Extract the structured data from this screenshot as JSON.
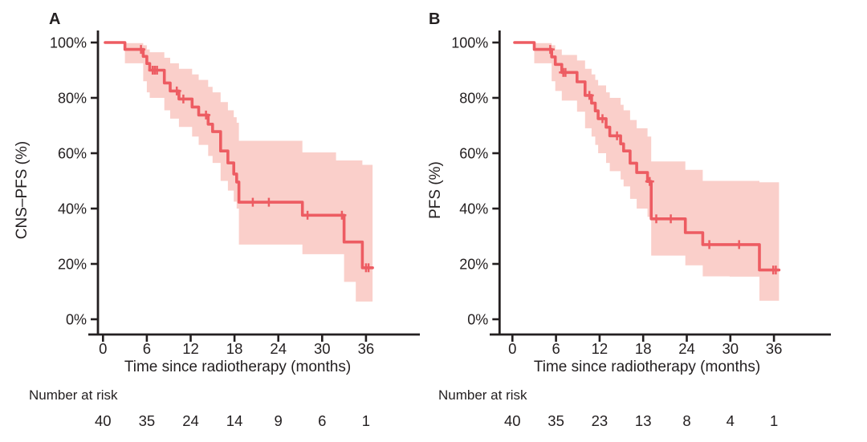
{
  "figure": {
    "background": "#ffffff",
    "colors": {
      "line": "#ED5C62",
      "band": "#FACFCA",
      "axis": "#231f20",
      "text": "#231f20"
    }
  },
  "chart_data": [
    {
      "type": "line",
      "km_curve": true,
      "panel_label": "A",
      "ylabel": "CNS–PFS (%)",
      "xlabel": "Time since radiotherapy (months)",
      "xlim": [
        0,
        38
      ],
      "ylim": [
        0,
        100
      ],
      "grid": false,
      "legend": "none",
      "xticks": [
        0,
        6,
        12,
        18,
        24,
        30,
        36
      ],
      "ytick_labels": [
        "100%",
        "80%",
        "60%",
        "40%",
        "20%",
        "0%"
      ],
      "ytick_values": [
        100,
        80,
        60,
        40,
        20,
        0
      ],
      "start": [
        0.3,
        100
      ],
      "end_time": 36.9,
      "survival_steps": [
        [
          3.0,
          97.5
        ],
        [
          5.5,
          95.0
        ],
        [
          6.0,
          92.4
        ],
        [
          6.4,
          90.0
        ],
        [
          8.4,
          85.4
        ],
        [
          9.2,
          82.5
        ],
        [
          10.4,
          79.6
        ],
        [
          12.2,
          76.7
        ],
        [
          13.1,
          73.8
        ],
        [
          14.4,
          70.5
        ],
        [
          15.0,
          67.8
        ],
        [
          16.1,
          60.8
        ],
        [
          17.1,
          56.5
        ],
        [
          17.9,
          52.5
        ],
        [
          18.3,
          49.6
        ],
        [
          18.6,
          42.3
        ],
        [
          27.3,
          37.6
        ],
        [
          33.0,
          27.9
        ],
        [
          35.5,
          18.6
        ]
      ],
      "censor_marks": [
        [
          5.2,
          97.5
        ],
        [
          6.8,
          90.0
        ],
        [
          7.1,
          90.0
        ],
        [
          7.4,
          90.0
        ],
        [
          10.1,
          82.5
        ],
        [
          11.0,
          79.6
        ],
        [
          14.1,
          73.8
        ],
        [
          20.5,
          42.3
        ],
        [
          22.7,
          42.3
        ],
        [
          28.0,
          37.6
        ],
        [
          32.7,
          37.6
        ],
        [
          36.0,
          18.6
        ],
        [
          36.35,
          18.6
        ]
      ],
      "ci_band": [
        [
          3.0,
          92.5,
          99.8
        ],
        [
          5.5,
          86.0,
          99.0
        ],
        [
          6.0,
          82.0,
          97.5
        ],
        [
          6.4,
          80.0,
          96.5
        ],
        [
          8.4,
          75.5,
          94.5
        ],
        [
          9.2,
          72.5,
          92.5
        ],
        [
          10.4,
          69.5,
          90.5
        ],
        [
          12.2,
          66.0,
          88.5
        ],
        [
          13.1,
          63.0,
          86.5
        ],
        [
          14.4,
          59.0,
          84.0
        ],
        [
          15.0,
          56.5,
          82.0
        ],
        [
          16.1,
          50.0,
          78.5
        ],
        [
          17.1,
          46.5,
          75.5
        ],
        [
          17.9,
          42.5,
          73.0
        ],
        [
          18.3,
          40.0,
          71.0
        ],
        [
          18.6,
          27.0,
          64.5
        ],
        [
          27.3,
          23.5,
          60.3
        ],
        [
          31.9,
          23.5,
          57.4
        ],
        [
          33.0,
          13.5,
          57.4
        ],
        [
          34.6,
          6.4,
          57.4
        ],
        [
          35.5,
          6.4,
          55.8
        ]
      ],
      "number_at_risk": {
        "label": "Number at risk",
        "times": [
          0,
          6,
          12,
          18,
          24,
          30,
          36
        ],
        "counts": [
          40,
          35,
          24,
          14,
          9,
          6,
          1
        ]
      }
    },
    {
      "type": "line",
      "km_curve": true,
      "panel_label": "B",
      "ylabel": "PFS (%)",
      "xlabel": "Time since radiotherapy (months)",
      "xlim": [
        0,
        38
      ],
      "ylim": [
        0,
        100
      ],
      "grid": false,
      "legend": "none",
      "xticks": [
        0,
        6,
        12,
        18,
        24,
        30,
        36
      ],
      "ytick_labels": [
        "100%",
        "80%",
        "60%",
        "40%",
        "20%",
        "0%"
      ],
      "ytick_values": [
        100,
        80,
        60,
        40,
        20,
        0
      ],
      "start": [
        0.3,
        100
      ],
      "end_time": 36.7,
      "survival_steps": [
        [
          3.0,
          97.5
        ],
        [
          5.4,
          94.8
        ],
        [
          5.9,
          92.1
        ],
        [
          6.8,
          89.2
        ],
        [
          8.9,
          85.8
        ],
        [
          10.0,
          80.9
        ],
        [
          10.9,
          78.1
        ],
        [
          11.4,
          75.3
        ],
        [
          11.8,
          72.5
        ],
        [
          12.9,
          69.4
        ],
        [
          13.4,
          66.3
        ],
        [
          14.9,
          63.4
        ],
        [
          15.3,
          60.8
        ],
        [
          16.2,
          56.4
        ],
        [
          17.1,
          53.0
        ],
        [
          18.6,
          49.8
        ],
        [
          19.1,
          36.3
        ],
        [
          23.8,
          31.3
        ],
        [
          26.2,
          27.0
        ],
        [
          34.0,
          17.8
        ]
      ],
      "censor_marks": [
        [
          5.2,
          97.5
        ],
        [
          7.0,
          89.2
        ],
        [
          7.3,
          89.2
        ],
        [
          10.6,
          80.9
        ],
        [
          12.4,
          72.5
        ],
        [
          14.4,
          66.3
        ],
        [
          18.9,
          49.8
        ],
        [
          19.8,
          36.3
        ],
        [
          21.8,
          36.3
        ],
        [
          27.1,
          27.0
        ],
        [
          31.2,
          27.0
        ],
        [
          35.9,
          17.8
        ],
        [
          36.25,
          17.8
        ]
      ],
      "ci_band": [
        [
          3.0,
          92.5,
          99.8
        ],
        [
          5.4,
          86.0,
          99.0
        ],
        [
          5.9,
          82.5,
          97.5
        ],
        [
          6.8,
          79.0,
          95.5
        ],
        [
          8.9,
          75.0,
          93.5
        ],
        [
          10.0,
          69.0,
          90.5
        ],
        [
          10.9,
          66.0,
          88.5
        ],
        [
          11.4,
          63.0,
          86.5
        ],
        [
          11.8,
          60.0,
          84.5
        ],
        [
          12.9,
          56.5,
          82.0
        ],
        [
          13.4,
          53.5,
          80.0
        ],
        [
          14.9,
          50.5,
          77.5
        ],
        [
          15.3,
          48.0,
          75.5
        ],
        [
          16.2,
          43.5,
          72.0
        ],
        [
          17.1,
          40.0,
          69.0
        ],
        [
          18.6,
          37.0,
          66.0
        ],
        [
          19.1,
          23.0,
          57.0
        ],
        [
          23.8,
          19.5,
          54.0
        ],
        [
          26.2,
          15.5,
          50.0
        ],
        [
          29.9,
          15.4,
          50.0
        ],
        [
          34.0,
          6.7,
          49.5
        ]
      ],
      "number_at_risk": {
        "label": "Number at risk",
        "times": [
          0,
          6,
          12,
          18,
          24,
          30,
          36
        ],
        "counts": [
          40,
          35,
          23,
          13,
          8,
          4,
          1
        ]
      }
    }
  ]
}
